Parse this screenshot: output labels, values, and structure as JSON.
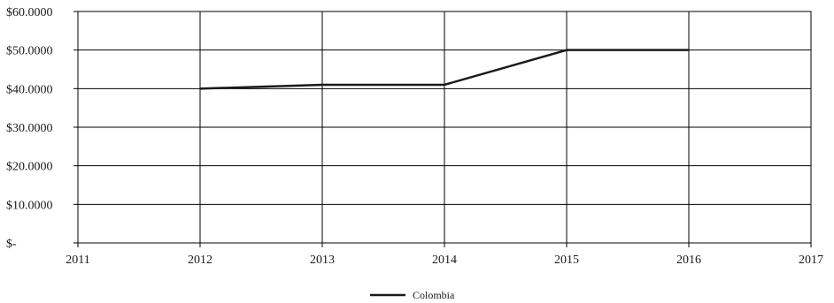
{
  "chart_data": {
    "type": "line",
    "x": [
      2012,
      2013,
      2014,
      2015,
      2016
    ],
    "series": [
      {
        "name": "Colombia",
        "values": [
          40,
          41,
          41,
          50,
          50
        ],
        "color": "#1a1a1a"
      }
    ],
    "xlim": [
      2011,
      2017
    ],
    "ylim": [
      0,
      60
    ],
    "xticks": [
      2011,
      2012,
      2013,
      2014,
      2015,
      2016,
      2017
    ],
    "xtick_labels": [
      "2011",
      "2012",
      "2013",
      "2014",
      "2015",
      "2016",
      "2017"
    ],
    "yticks": [
      0,
      10,
      20,
      30,
      40,
      50,
      60
    ],
    "ytick_labels": [
      "$-",
      "$10.0000",
      "$20.0000",
      "$30.0000",
      "$40.0000",
      "$50.0000",
      "$60.0000"
    ],
    "grid": true,
    "legend": "bottom-center",
    "title": "",
    "xlabel": "",
    "ylabel": ""
  }
}
